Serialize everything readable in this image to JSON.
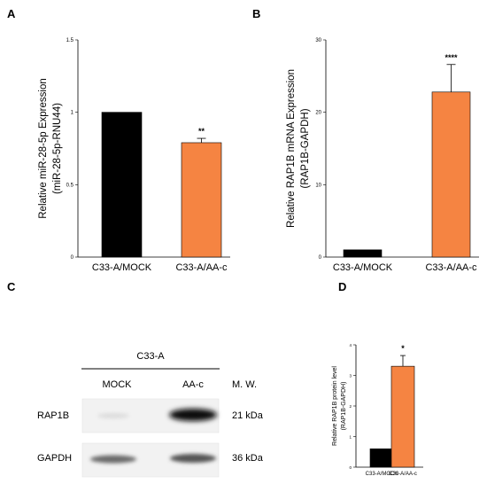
{
  "panels": {
    "a": "A",
    "b": "B",
    "c": "C",
    "d": "D"
  },
  "chart_data": [
    {
      "id": "A",
      "type": "bar",
      "categories": [
        "C33-A/MOCK",
        "C33-A/AA-c"
      ],
      "values": [
        1.0,
        0.79
      ],
      "errors": [
        0,
        0.03
      ],
      "colors": [
        "#000000",
        "#f58442"
      ],
      "significance": [
        "",
        "**"
      ],
      "ylabel": [
        "Relative miR-28-5p Expression",
        "(miR-28-5p-RNU44)"
      ],
      "ylim": [
        0,
        1.5
      ],
      "yticks": [
        "0",
        "0.5",
        "1",
        "1.5"
      ],
      "ytick_values": [
        0,
        0.5,
        1,
        1.5
      ]
    },
    {
      "id": "B",
      "type": "bar",
      "categories": [
        "C33-A/MOCK",
        "C33-A/AA-c"
      ],
      "values": [
        1.0,
        22.8
      ],
      "errors": [
        0,
        3.8
      ],
      "colors": [
        "#000000",
        "#f58442"
      ],
      "significance": [
        "",
        "****"
      ],
      "ylabel": [
        "Relative RAP1B mRNA Expression",
        "(RAP1B-GAPDH)"
      ],
      "ylim": [
        0,
        30
      ],
      "yticks": [
        "0",
        "10",
        "20",
        "30"
      ],
      "ytick_values": [
        0,
        10,
        20,
        30
      ]
    },
    {
      "id": "D",
      "type": "bar",
      "categories": [
        "C33-A/MOCK",
        "C33-A/AA-c"
      ],
      "values": [
        0.6,
        3.3
      ],
      "errors": [
        0,
        0.35
      ],
      "colors": [
        "#000000",
        "#f58442"
      ],
      "significance": [
        "",
        "*"
      ],
      "ylabel": [
        "Relative RAP1B protein level",
        "(RAP1B-GAPDH)"
      ],
      "ylim": [
        0,
        4
      ],
      "yticks": [
        "0",
        "1",
        "2",
        "3",
        "4"
      ],
      "ytick_values": [
        0,
        1,
        2,
        3,
        4
      ]
    }
  ],
  "blot": {
    "cell_line": "C33-A",
    "lanes": [
      "MOCK",
      "AA-c"
    ],
    "mw_header": "M. W.",
    "rows": [
      {
        "name": "RAP1B",
        "mw": "21 kDa"
      },
      {
        "name": "GAPDH",
        "mw": "36 kDa"
      }
    ]
  }
}
